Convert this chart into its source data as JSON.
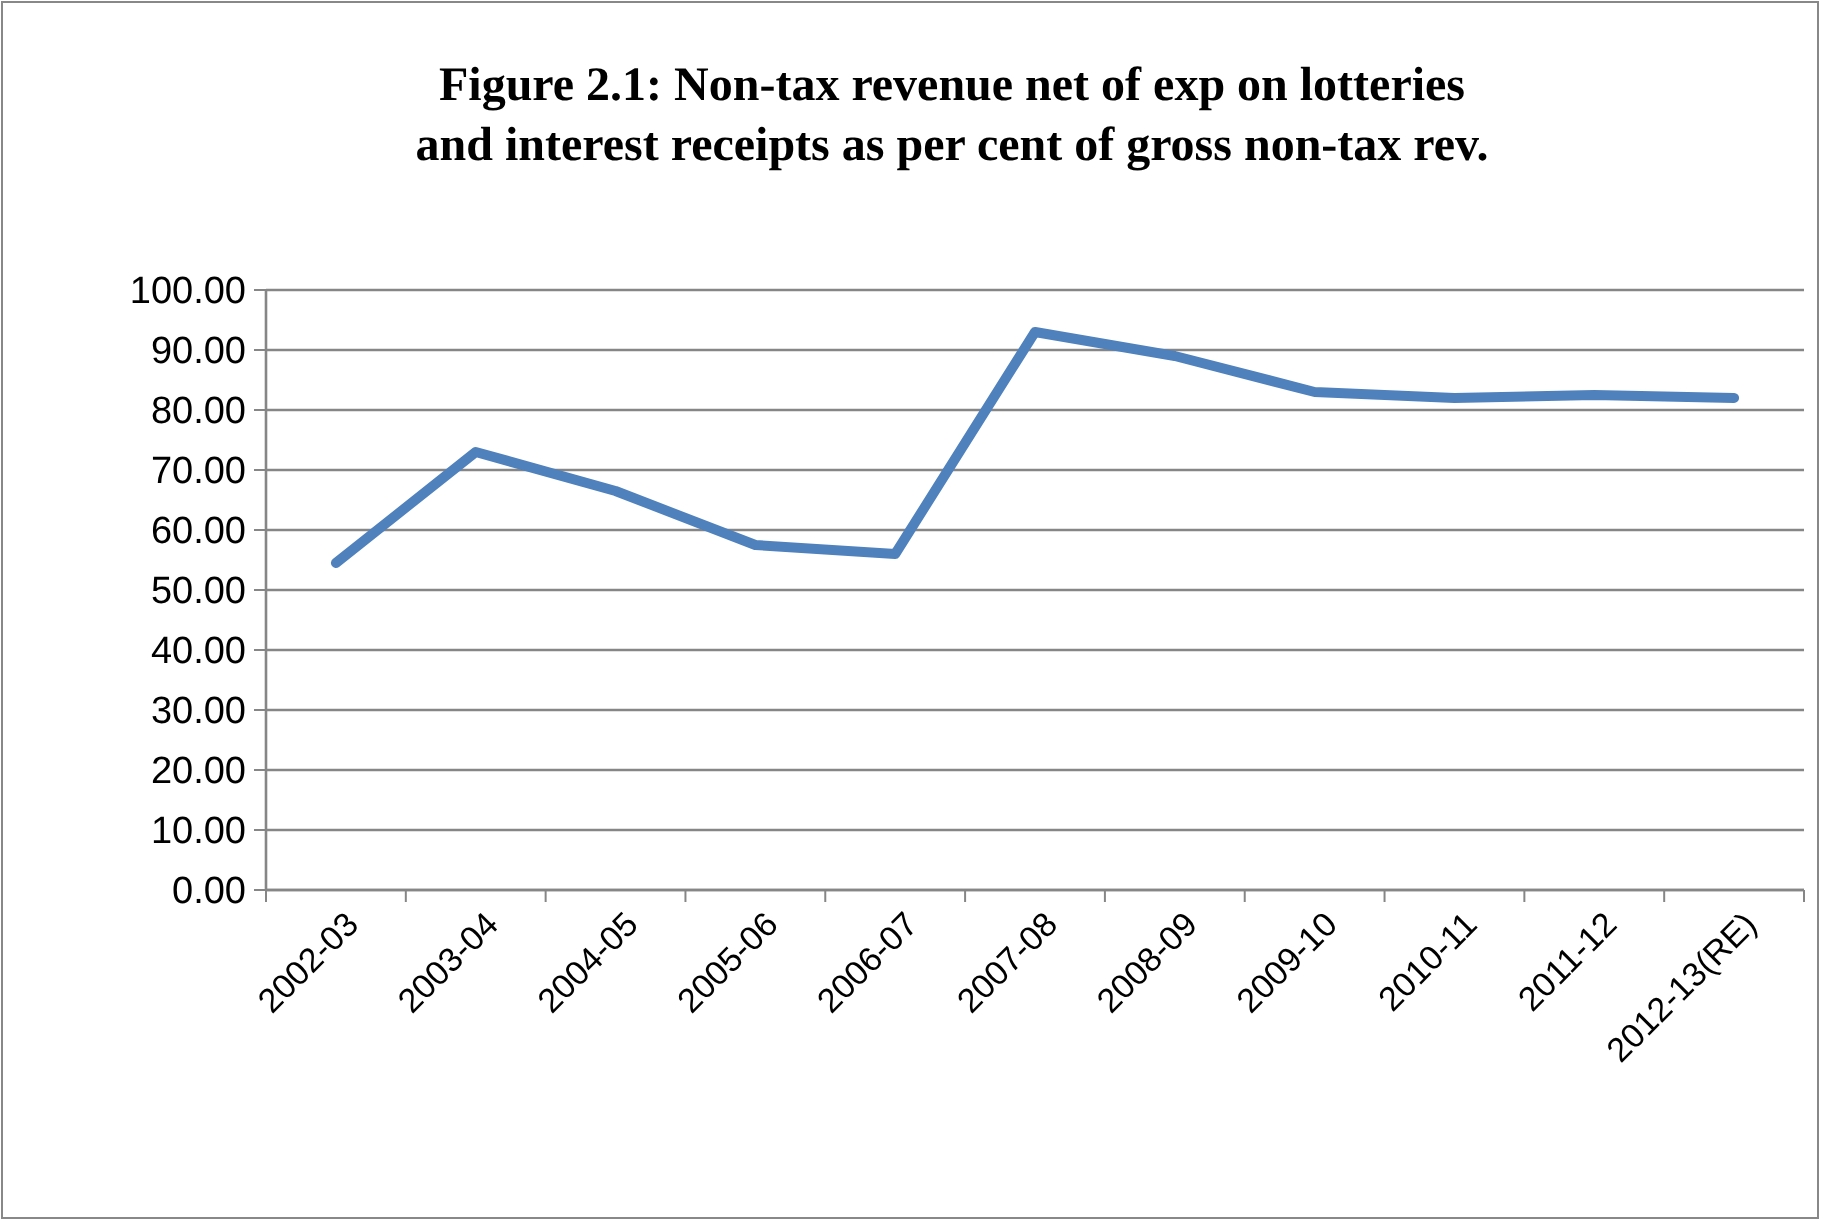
{
  "chart_data": {
    "type": "line",
    "title": "Figure 2.1: Non-tax revenue net of exp on lotteries\nand interest receipts as per cent of gross non-tax rev.",
    "categories": [
      "2002-03",
      "2003-04",
      "2004-05",
      "2005-06",
      "2006-07",
      "2007-08",
      "2008-09",
      "2009-10",
      "2010-11",
      "2011-12",
      "2012-13(RE)"
    ],
    "series": [
      {
        "color": "#4f81bd",
        "values": [
          54.5,
          73,
          66.5,
          57.5,
          56,
          93,
          89,
          83,
          82,
          82.5,
          82
        ]
      }
    ],
    "ylim": [
      0,
      100
    ],
    "yticks": [
      {
        "value": 0,
        "label": "0.00"
      },
      {
        "value": 10,
        "label": "10.00"
      },
      {
        "value": 20,
        "label": "20.00"
      },
      {
        "value": 30,
        "label": "30.00"
      },
      {
        "value": 40,
        "label": "40.00"
      },
      {
        "value": 50,
        "label": "50.00"
      },
      {
        "value": 60,
        "label": "60.00"
      },
      {
        "value": 70,
        "label": "70.00"
      },
      {
        "value": 80,
        "label": "80.00"
      },
      {
        "value": 90,
        "label": "90.00"
      },
      {
        "value": 100,
        "label": "100.00"
      }
    ],
    "grid": "y",
    "marker": "none",
    "line_style": "solid"
  }
}
